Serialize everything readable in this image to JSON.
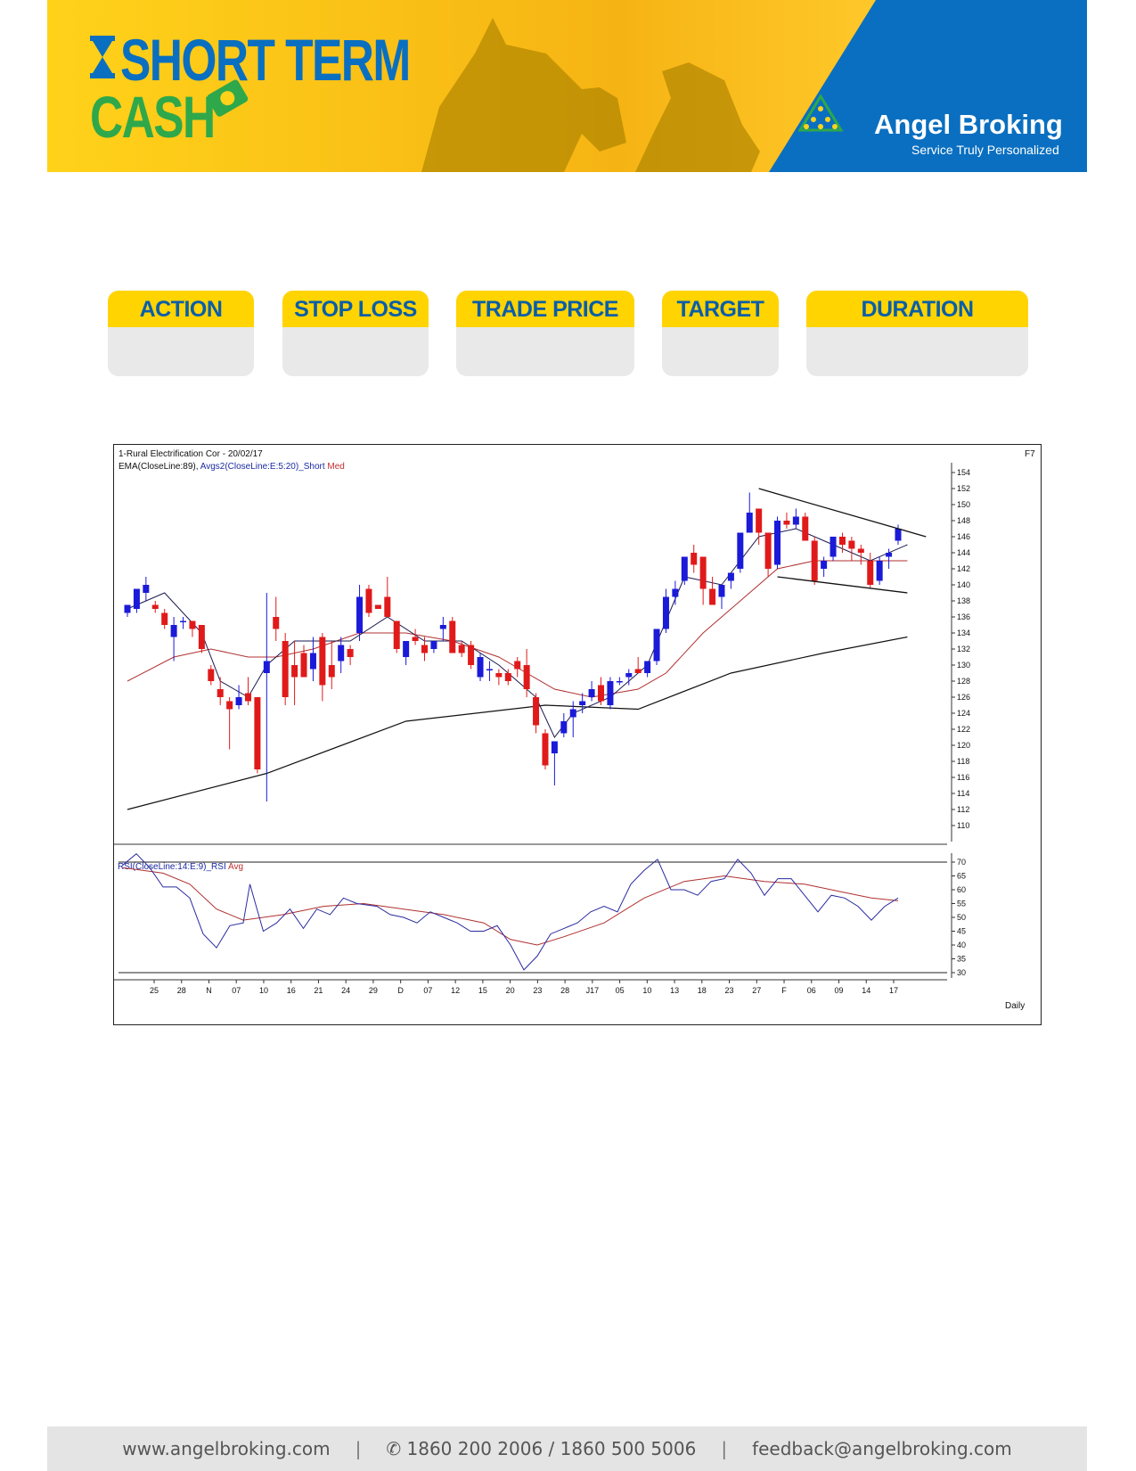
{
  "banner": {
    "title_line1": "SHORT TERM",
    "title_line2": "CASH",
    "company": "Angel Broking",
    "tagline": "Service Truly Personalized",
    "colors": {
      "yellow": "#ffc20e",
      "blue": "#0a6fc0",
      "green": "#2ea84a"
    }
  },
  "trade_table": {
    "headers": [
      "ACTION",
      "STOP LOSS",
      "TRADE PRICE",
      "TARGET",
      "DURATION"
    ],
    "values": [
      "",
      "",
      "",
      "",
      ""
    ]
  },
  "chart_data": {
    "type": "candlestick",
    "title": "1-Rural Electrification Cor - 20/02/17",
    "legend_main": "EMA(CloseLine:89), Avgs2(CloseLine:E:5:20)_Short Med",
    "legend_main_parts": [
      "EMA(CloseLine:89), ",
      "Avgs2(CloseLine:E:5:20)_Short ",
      "Med"
    ],
    "corner_label": "F7",
    "period_label": "Daily",
    "price_axis": {
      "min": 110,
      "max": 154,
      "ticks": [
        154,
        152,
        150,
        148,
        146,
        144,
        142,
        140,
        138,
        136,
        134,
        132,
        130,
        128,
        126,
        124,
        122,
        120,
        118,
        116,
        114,
        112,
        110
      ]
    },
    "x_ticks": [
      "25",
      "28",
      "N",
      "07",
      "10",
      "16",
      "21",
      "24",
      "29",
      "D",
      "07",
      "12",
      "15",
      "20",
      "23",
      "28",
      "J17",
      "05",
      "10",
      "13",
      "18",
      "23",
      "27",
      "F",
      "06",
      "09",
      "14",
      "17"
    ],
    "candles_ohlc": [
      [
        136.5,
        137.5,
        136.0,
        137.5
      ],
      [
        137.0,
        139.5,
        136.5,
        139.5
      ],
      [
        139.0,
        141.0,
        138.0,
        140.0
      ],
      [
        137.5,
        138.0,
        136.5,
        137.0
      ],
      [
        136.5,
        137.0,
        134.5,
        135.0
      ],
      [
        133.5,
        136.0,
        130.5,
        135.0
      ],
      [
        135.5,
        136.0,
        134.5,
        135.5
      ],
      [
        135.5,
        135.5,
        133.5,
        134.5
      ],
      [
        135.0,
        135.0,
        131.5,
        132.0
      ],
      [
        129.5,
        130.0,
        127.5,
        128.0
      ],
      [
        127.0,
        128.5,
        125.0,
        126.0
      ],
      [
        125.5,
        126.0,
        119.5,
        124.5
      ],
      [
        125.0,
        127.5,
        124.5,
        126.0
      ],
      [
        126.5,
        128.5,
        125.0,
        125.5
      ],
      [
        126.0,
        126.0,
        116.5,
        117.0
      ],
      [
        129.0,
        139.0,
        113.0,
        130.5
      ],
      [
        136.0,
        138.5,
        133.0,
        134.5
      ],
      [
        133.0,
        134.0,
        125.0,
        126.0
      ],
      [
        130.0,
        133.0,
        125.0,
        128.5
      ],
      [
        131.5,
        132.5,
        128.5,
        128.5
      ],
      [
        129.5,
        133.5,
        128.0,
        131.5
      ],
      [
        133.5,
        134.0,
        125.5,
        127.5
      ],
      [
        130.0,
        133.0,
        127.0,
        128.5
      ],
      [
        130.5,
        133.5,
        129.0,
        132.5
      ],
      [
        132.0,
        132.5,
        130.0,
        131.0
      ],
      [
        134.0,
        140.0,
        133.0,
        138.5
      ],
      [
        139.5,
        140.0,
        136.0,
        136.5
      ],
      [
        137.5,
        137.5,
        137.0,
        137.0
      ],
      [
        138.5,
        141.0,
        136.5,
        136.0
      ],
      [
        135.5,
        135.5,
        131.5,
        132.0
      ],
      [
        131.0,
        133.0,
        130.0,
        133.0
      ],
      [
        133.5,
        134.5,
        132.5,
        133.0
      ],
      [
        132.5,
        133.5,
        130.5,
        131.5
      ],
      [
        132.0,
        133.0,
        131.5,
        133.0
      ],
      [
        134.5,
        136.0,
        133.0,
        135.0
      ],
      [
        135.5,
        136.0,
        131.5,
        131.5
      ],
      [
        132.5,
        133.0,
        131.0,
        131.5
      ],
      [
        132.5,
        133.0,
        129.5,
        130.0
      ],
      [
        128.5,
        131.5,
        128.0,
        131.0
      ],
      [
        129.5,
        130.5,
        128.0,
        129.5
      ],
      [
        129.0,
        129.5,
        127.5,
        128.5
      ],
      [
        129.0,
        129.5,
        127.5,
        128.0
      ],
      [
        130.5,
        131.0,
        128.5,
        129.5
      ],
      [
        130.0,
        132.0,
        126.0,
        127.0
      ],
      [
        126.0,
        126.5,
        121.5,
        122.5
      ],
      [
        121.5,
        122.0,
        117.0,
        117.5
      ],
      [
        119.0,
        120.5,
        115.0,
        120.5
      ],
      [
        121.5,
        124.0,
        121.0,
        123.0
      ],
      [
        123.5,
        125.5,
        121.0,
        124.5
      ],
      [
        125.0,
        126.5,
        124.0,
        125.5
      ],
      [
        126.0,
        128.0,
        125.5,
        127.0
      ],
      [
        127.5,
        128.5,
        125.0,
        125.5
      ],
      [
        125.0,
        128.5,
        124.5,
        128.0
      ],
      [
        128.0,
        128.5,
        127.5,
        128.0
      ],
      [
        128.5,
        129.5,
        127.5,
        129.0
      ],
      [
        129.5,
        131.0,
        129.0,
        129.0
      ],
      [
        129.0,
        130.5,
        128.5,
        130.5
      ],
      [
        130.5,
        134.5,
        130.0,
        134.5
      ],
      [
        134.5,
        139.5,
        134.0,
        138.5
      ],
      [
        138.5,
        140.5,
        137.5,
        139.5
      ],
      [
        140.5,
        143.5,
        140.0,
        143.5
      ],
      [
        144.0,
        145.0,
        141.5,
        142.5
      ],
      [
        143.5,
        143.5,
        137.5,
        139.5
      ],
      [
        139.5,
        141.0,
        137.5,
        137.5
      ],
      [
        138.5,
        140.0,
        137.0,
        140.0
      ],
      [
        140.5,
        141.5,
        139.5,
        141.5
      ],
      [
        142.0,
        146.5,
        141.5,
        146.5
      ],
      [
        146.5,
        151.5,
        146.5,
        149.0
      ],
      [
        149.5,
        149.5,
        145.0,
        146.5
      ],
      [
        146.5,
        146.5,
        141.0,
        142.0
      ],
      [
        142.5,
        148.5,
        142.0,
        148.0
      ],
      [
        148.0,
        149.0,
        147.0,
        147.5
      ],
      [
        147.5,
        149.5,
        147.0,
        148.5
      ],
      [
        148.5,
        149.0,
        145.5,
        145.5
      ],
      [
        145.5,
        146.0,
        140.0,
        140.5
      ],
      [
        142.0,
        143.5,
        141.0,
        143.0
      ],
      [
        143.5,
        146.0,
        143.0,
        146.0
      ],
      [
        146.0,
        146.5,
        144.0,
        145.0
      ],
      [
        145.5,
        146.0,
        143.0,
        144.5
      ],
      [
        144.5,
        145.0,
        142.5,
        144.0
      ],
      [
        143.0,
        144.0,
        139.5,
        140.0
      ],
      [
        140.5,
        143.5,
        140.0,
        143.0
      ],
      [
        143.5,
        144.5,
        142.0,
        144.0
      ],
      [
        145.5,
        147.5,
        145.0,
        147.0
      ]
    ],
    "ema89": [
      [
        0,
        112
      ],
      [
        15,
        116.5
      ],
      [
        30,
        123.0
      ],
      [
        45,
        125.0
      ],
      [
        55,
        124.5
      ],
      [
        65,
        129.0
      ],
      [
        75,
        131.5
      ],
      [
        84,
        133.5
      ]
    ],
    "avg_short": [
      [
        0,
        137
      ],
      [
        4,
        139
      ],
      [
        8,
        134
      ],
      [
        10,
        128
      ],
      [
        13,
        126
      ],
      [
        15,
        130
      ],
      [
        18,
        133
      ],
      [
        24,
        133
      ],
      [
        28,
        136
      ],
      [
        32,
        133
      ],
      [
        36,
        133
      ],
      [
        40,
        130
      ],
      [
        44,
        126
      ],
      [
        46,
        121
      ],
      [
        48,
        124
      ],
      [
        52,
        126
      ],
      [
        56,
        130
      ],
      [
        60,
        141
      ],
      [
        64,
        140
      ],
      [
        68,
        146
      ],
      [
        72,
        147
      ],
      [
        76,
        145
      ],
      [
        80,
        143
      ],
      [
        84,
        145
      ]
    ],
    "avg_med": [
      [
        0,
        128
      ],
      [
        5,
        131
      ],
      [
        9,
        132
      ],
      [
        13,
        131
      ],
      [
        16,
        131
      ],
      [
        20,
        132
      ],
      [
        25,
        134
      ],
      [
        30,
        134
      ],
      [
        35,
        133
      ],
      [
        40,
        131
      ],
      [
        43,
        129
      ],
      [
        46,
        127
      ],
      [
        50,
        126
      ],
      [
        55,
        127
      ],
      [
        58,
        129
      ],
      [
        62,
        134
      ],
      [
        66,
        138
      ],
      [
        70,
        142
      ],
      [
        74,
        143
      ],
      [
        78,
        143
      ],
      [
        82,
        143
      ],
      [
        84,
        143
      ]
    ],
    "trendline_upper": [
      [
        68,
        152
      ],
      [
        86,
        146
      ]
    ],
    "trendline_lower": [
      [
        70,
        141
      ],
      [
        84,
        139
      ]
    ],
    "rsi": {
      "title": "RSI(CloseLine:14:E:9)_RSI ",
      "title_avg": "Avg",
      "axis": {
        "min": 30,
        "max": 70,
        "ticks": [
          70,
          65,
          60,
          55,
          50,
          45,
          40,
          35,
          30
        ]
      },
      "rsi_line": [
        [
          0,
          69
        ],
        [
          2,
          73
        ],
        [
          4,
          68
        ],
        [
          6,
          61
        ],
        [
          8,
          61
        ],
        [
          10,
          57
        ],
        [
          12,
          44
        ],
        [
          14,
          39
        ],
        [
          16,
          47
        ],
        [
          18,
          48
        ],
        [
          19,
          62
        ],
        [
          21,
          45
        ],
        [
          23,
          48
        ],
        [
          25,
          53
        ],
        [
          27,
          46
        ],
        [
          29,
          53
        ],
        [
          31,
          51
        ],
        [
          33,
          57
        ],
        [
          35,
          55
        ],
        [
          38,
          54
        ],
        [
          40,
          51
        ],
        [
          42,
          50
        ],
        [
          44,
          48
        ],
        [
          46,
          52
        ],
        [
          48,
          50
        ],
        [
          50,
          48
        ],
        [
          52,
          45
        ],
        [
          54,
          45
        ],
        [
          56,
          47
        ],
        [
          58,
          40
        ],
        [
          60,
          31
        ],
        [
          62,
          36
        ],
        [
          64,
          44
        ],
        [
          66,
          46
        ],
        [
          68,
          48
        ],
        [
          70,
          52
        ],
        [
          72,
          54
        ],
        [
          74,
          52
        ],
        [
          76,
          62
        ],
        [
          78,
          67
        ],
        [
          80,
          71
        ],
        [
          82,
          60
        ],
        [
          84,
          60
        ],
        [
          86,
          58
        ],
        [
          88,
          63
        ],
        [
          90,
          64
        ],
        [
          92,
          71
        ],
        [
          94,
          66
        ],
        [
          96,
          58
        ],
        [
          98,
          64
        ],
        [
          100,
          64
        ],
        [
          102,
          58
        ],
        [
          104,
          52
        ],
        [
          106,
          58
        ],
        [
          108,
          57
        ],
        [
          110,
          54
        ],
        [
          112,
          49
        ],
        [
          114,
          54
        ],
        [
          116,
          57
        ]
      ],
      "avg_line": [
        [
          0,
          68
        ],
        [
          6,
          66
        ],
        [
          10,
          62
        ],
        [
          14,
          53
        ],
        [
          18,
          49
        ],
        [
          24,
          51
        ],
        [
          30,
          54
        ],
        [
          36,
          55
        ],
        [
          42,
          53
        ],
        [
          48,
          51
        ],
        [
          54,
          48
        ],
        [
          58,
          42
        ],
        [
          62,
          40
        ],
        [
          66,
          43
        ],
        [
          72,
          48
        ],
        [
          78,
          57
        ],
        [
          84,
          63
        ],
        [
          90,
          65
        ],
        [
          96,
          63
        ],
        [
          102,
          62
        ],
        [
          108,
          59
        ],
        [
          112,
          57
        ],
        [
          116,
          56
        ]
      ]
    }
  },
  "footer": {
    "website": "www.angelbroking.com",
    "phone": "1860 200 2006 / 1860 500 5006",
    "email": "feedback@angelbroking.com",
    "separator": "|"
  }
}
